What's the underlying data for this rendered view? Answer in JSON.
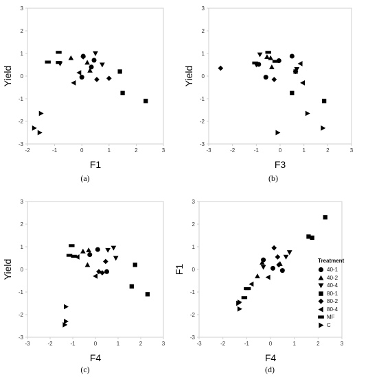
{
  "colors": {
    "marker": "#000000",
    "frame": "#cfcfcf",
    "axis_text": "#333333"
  },
  "legend": {
    "title": "Treatment",
    "items": [
      {
        "label": "40-1",
        "marker": "circle"
      },
      {
        "label": "40-2",
        "marker": "triangle-up"
      },
      {
        "label": "40-4",
        "marker": "triangle-down"
      },
      {
        "label": "80-1",
        "marker": "square"
      },
      {
        "label": "80-2",
        "marker": "diamond"
      },
      {
        "label": "80-4",
        "marker": "triangle-left"
      },
      {
        "label": "MF",
        "marker": "rect"
      },
      {
        "label": "C",
        "marker": "triangle-right"
      }
    ]
  },
  "chart_data": [
    {
      "type": "scatter",
      "panel_label": "(a)",
      "xlabel": "F1",
      "ylabel": "Yield",
      "xlim": [
        -2,
        3
      ],
      "ylim": [
        -3,
        3
      ],
      "xticks": [
        -2,
        -1,
        0,
        1,
        2,
        3
      ],
      "yticks": [
        -3,
        -2,
        -1,
        0,
        1,
        2,
        3
      ],
      "series": [
        {
          "name": "40-1",
          "points": [
            [
              0.0,
              -0.05
            ],
            [
              0.05,
              0.88
            ],
            [
              0.45,
              0.7
            ],
            [
              0.35,
              0.4
            ]
          ]
        },
        {
          "name": "40-2",
          "points": [
            [
              -0.4,
              0.8
            ],
            [
              0.3,
              0.25
            ],
            [
              0.2,
              0.6
            ]
          ]
        },
        {
          "name": "40-4",
          "points": [
            [
              0.5,
              1.0
            ],
            [
              0.75,
              0.5
            ],
            [
              -0.8,
              0.55
            ]
          ]
        },
        {
          "name": "80-1",
          "points": [
            [
              1.5,
              -0.75
            ],
            [
              2.35,
              -1.1
            ],
            [
              1.4,
              0.2
            ]
          ]
        },
        {
          "name": "80-2",
          "points": [
            [
              0.55,
              -0.15
            ],
            [
              1.0,
              -0.1
            ],
            [
              0.05,
              0.85
            ]
          ]
        },
        {
          "name": "80-4",
          "points": [
            [
              -0.3,
              -0.3
            ],
            [
              -0.1,
              0.15
            ]
          ]
        },
        {
          "name": "MF",
          "points": [
            [
              -0.85,
              1.05
            ],
            [
              -1.25,
              0.62
            ],
            [
              -0.85,
              0.6
            ]
          ]
        },
        {
          "name": "C",
          "points": [
            [
              -1.5,
              -1.65
            ],
            [
              -1.75,
              -2.3
            ],
            [
              -1.55,
              -2.5
            ]
          ]
        }
      ]
    },
    {
      "type": "scatter",
      "panel_label": "(b)",
      "xlabel": "F3",
      "ylabel": "Yield",
      "xlim": [
        -3,
        3
      ],
      "ylim": [
        -3,
        3
      ],
      "xticks": [
        -3,
        -2,
        -1,
        0,
        1,
        2,
        3
      ],
      "yticks": [
        -3,
        -2,
        -1,
        0,
        1,
        2,
        3
      ],
      "series": [
        {
          "name": "40-1",
          "points": [
            [
              0.5,
              0.88
            ],
            [
              -0.05,
              0.68
            ],
            [
              -0.6,
              -0.05
            ],
            [
              -0.9,
              0.52
            ]
          ]
        },
        {
          "name": "40-2",
          "points": [
            [
              -0.4,
              0.8
            ],
            [
              -0.35,
              0.4
            ],
            [
              -0.55,
              0.85
            ]
          ]
        },
        {
          "name": "40-4",
          "points": [
            [
              -0.85,
              0.95
            ],
            [
              -1.0,
              0.5
            ],
            [
              0.7,
              0.3
            ]
          ]
        },
        {
          "name": "80-1",
          "points": [
            [
              0.5,
              -0.75
            ],
            [
              1.85,
              -1.1
            ],
            [
              0.65,
              0.2
            ]
          ]
        },
        {
          "name": "80-2",
          "points": [
            [
              -2.5,
              0.35
            ],
            [
              -0.25,
              -0.15
            ],
            [
              0.65,
              0.2
            ]
          ]
        },
        {
          "name": "80-4",
          "points": [
            [
              0.95,
              -0.3
            ],
            [
              0.85,
              0.55
            ]
          ]
        },
        {
          "name": "MF",
          "points": [
            [
              -0.5,
              1.05
            ],
            [
              -1.05,
              0.58
            ],
            [
              -0.2,
              0.65
            ]
          ]
        },
        {
          "name": "C",
          "points": [
            [
              1.15,
              -1.65
            ],
            [
              1.8,
              -2.3
            ],
            [
              -0.1,
              -2.5
            ]
          ]
        }
      ]
    },
    {
      "type": "scatter",
      "panel_label": "(c)",
      "xlabel": "F4",
      "ylabel": "Yield",
      "xlim": [
        -3,
        3
      ],
      "ylim": [
        -3,
        3
      ],
      "xticks": [
        -3,
        -2,
        -1,
        0,
        1,
        2,
        3
      ],
      "yticks": [
        -3,
        -2,
        -1,
        0,
        1,
        2,
        3
      ],
      "series": [
        {
          "name": "40-1",
          "points": [
            [
              0.1,
              0.88
            ],
            [
              -0.25,
              0.65
            ],
            [
              0.5,
              -0.1
            ]
          ]
        },
        {
          "name": "40-2",
          "points": [
            [
              -0.55,
              0.8
            ],
            [
              -0.3,
              0.85
            ],
            [
              -0.35,
              0.2
            ]
          ]
        },
        {
          "name": "40-4",
          "points": [
            [
              0.8,
              0.95
            ],
            [
              0.55,
              0.85
            ],
            [
              0.9,
              0.5
            ]
          ]
        },
        {
          "name": "80-1",
          "points": [
            [
              1.6,
              -0.75
            ],
            [
              2.3,
              -1.1
            ],
            [
              1.75,
              0.2
            ]
          ]
        },
        {
          "name": "80-2",
          "points": [
            [
              0.45,
              0.35
            ],
            [
              0.15,
              -0.1
            ],
            [
              0.3,
              -0.15
            ]
          ]
        },
        {
          "name": "80-4",
          "points": [
            [
              -0.8,
              0.55
            ],
            [
              0.0,
              -0.3
            ]
          ]
        },
        {
          "name": "MF",
          "points": [
            [
              -1.05,
              1.05
            ],
            [
              -1.15,
              0.62
            ],
            [
              -0.95,
              0.58
            ]
          ]
        },
        {
          "name": "C",
          "points": [
            [
              -1.3,
              -1.65
            ],
            [
              -1.3,
              -2.3
            ],
            [
              -1.35,
              -2.45
            ]
          ]
        }
      ]
    },
    {
      "type": "scatter",
      "panel_label": "(d)",
      "xlabel": "F4",
      "ylabel": "F1",
      "xlim": [
        -3,
        3
      ],
      "ylim": [
        -3,
        3
      ],
      "xticks": [
        -3,
        -2,
        -1,
        0,
        1,
        2,
        3
      ],
      "yticks": [
        -3,
        -2,
        -1,
        0,
        1,
        2,
        3
      ],
      "series": [
        {
          "name": "40-1",
          "points": [
            [
              -0.3,
              0.42
            ],
            [
              0.1,
              0.05
            ],
            [
              0.5,
              -0.05
            ]
          ]
        },
        {
          "name": "40-2",
          "points": [
            [
              -0.35,
              0.3
            ],
            [
              -0.55,
              -0.3
            ],
            [
              0.4,
              0.25
            ]
          ]
        },
        {
          "name": "40-4",
          "points": [
            [
              0.8,
              0.75
            ],
            [
              0.65,
              0.55
            ],
            [
              -0.3,
              0.1
            ]
          ]
        },
        {
          "name": "80-1",
          "points": [
            [
              1.6,
              1.45
            ],
            [
              2.3,
              2.3
            ],
            [
              1.75,
              1.4
            ]
          ]
        },
        {
          "name": "80-2",
          "points": [
            [
              0.3,
              0.55
            ],
            [
              0.15,
              0.95
            ],
            [
              0.35,
              0.2
            ]
          ]
        },
        {
          "name": "80-4",
          "points": [
            [
              -0.8,
              -0.65
            ],
            [
              -0.1,
              -0.35
            ]
          ]
        },
        {
          "name": "MF",
          "points": [
            [
              -1.0,
              -0.85
            ],
            [
              -1.1,
              -1.25
            ],
            [
              -0.95,
              -0.85
            ]
          ]
        },
        {
          "name": "C",
          "points": [
            [
              -1.3,
              -1.75
            ],
            [
              -1.35,
              -1.5
            ],
            [
              -1.3,
              -1.45
            ]
          ]
        }
      ]
    }
  ]
}
